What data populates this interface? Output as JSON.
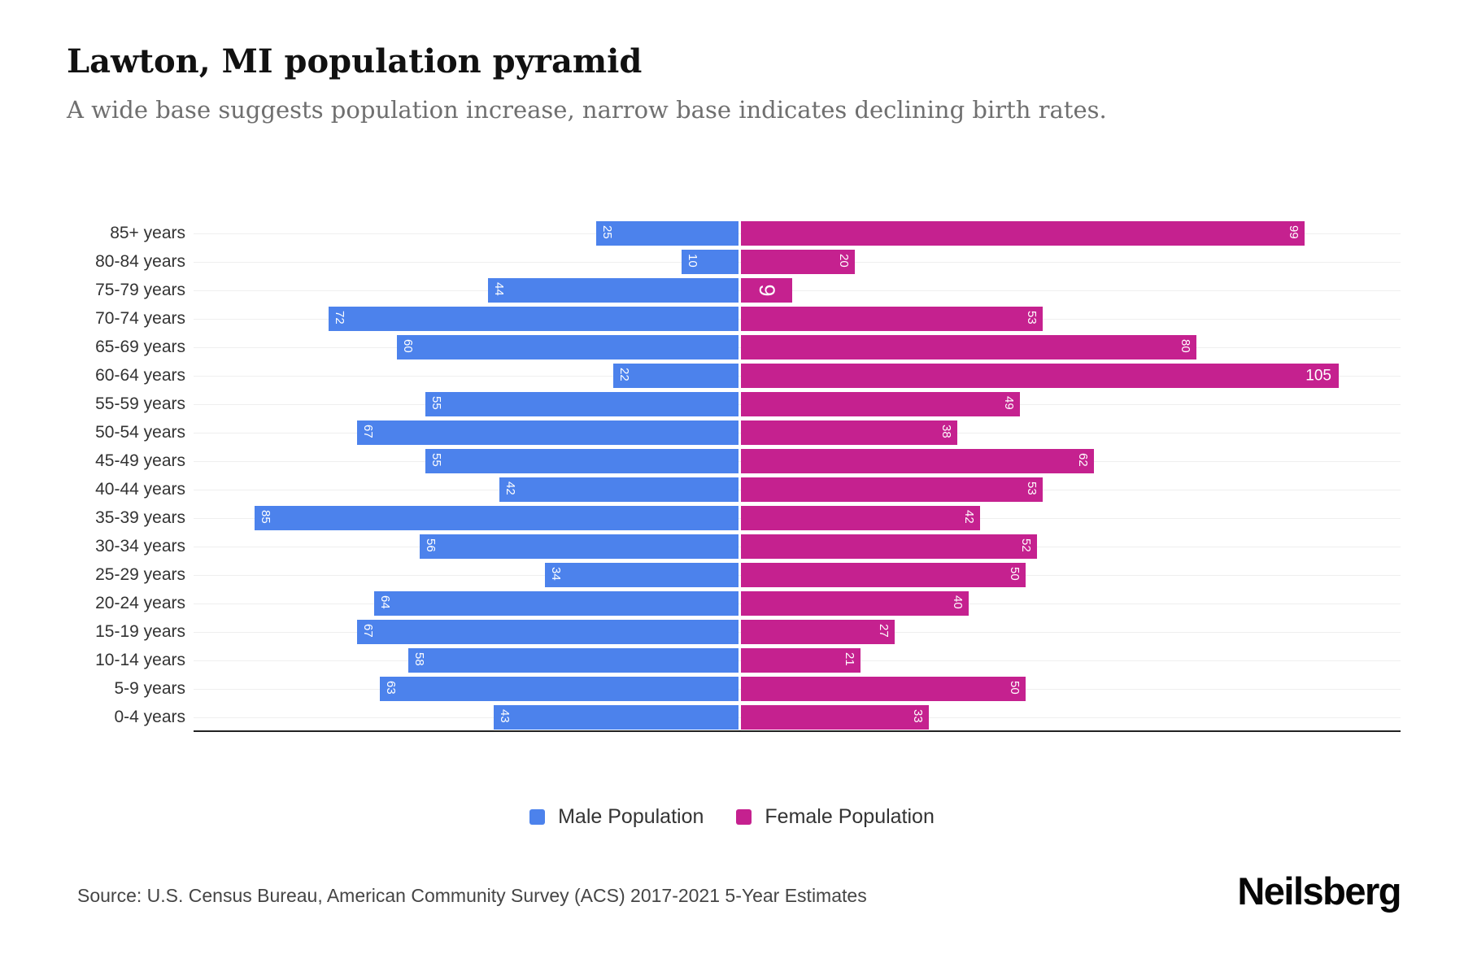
{
  "page": {
    "title": "Lawton, MI population pyramid",
    "subtitle": "A wide base suggests population increase, narrow base indicates declining birth rates.",
    "source": "Source: U.S. Census Bureau, American Community Survey (ACS) 2017-2021 5-Year Estimates",
    "brand": "Neilsberg"
  },
  "colors": {
    "male": "#4c82ec",
    "female": "#c5218f",
    "axis": "#222222",
    "gridline": "#efefef",
    "bar_value_text": "#ffffff"
  },
  "chart_data": {
    "type": "bar",
    "variant": "population-pyramid",
    "title": "Lawton, MI population pyramid",
    "categories": [
      "85+ years",
      "80-84 years",
      "75-79 years",
      "70-74 years",
      "65-69 years",
      "60-64 years",
      "55-59 years",
      "50-54 years",
      "45-49 years",
      "40-44 years",
      "35-39 years",
      "30-34 years",
      "25-29 years",
      "20-24 years",
      "15-19 years",
      "10-14 years",
      "5-9 years",
      "0-4 years"
    ],
    "series": [
      {
        "name": "Male Population",
        "side": "left",
        "color": "#4c82ec",
        "values": [
          25,
          10,
          44,
          72,
          60,
          22,
          55,
          67,
          55,
          42,
          85,
          56,
          34,
          64,
          67,
          58,
          63,
          43
        ]
      },
      {
        "name": "Female Population",
        "side": "right",
        "color": "#c5218f",
        "values": [
          99,
          20,
          9,
          53,
          80,
          105,
          49,
          38,
          62,
          53,
          42,
          52,
          50,
          40,
          27,
          21,
          50,
          33
        ]
      }
    ],
    "value_axis_max": 110,
    "grid": true,
    "legend_position": "bottom",
    "bar_labels": "inside-end"
  }
}
